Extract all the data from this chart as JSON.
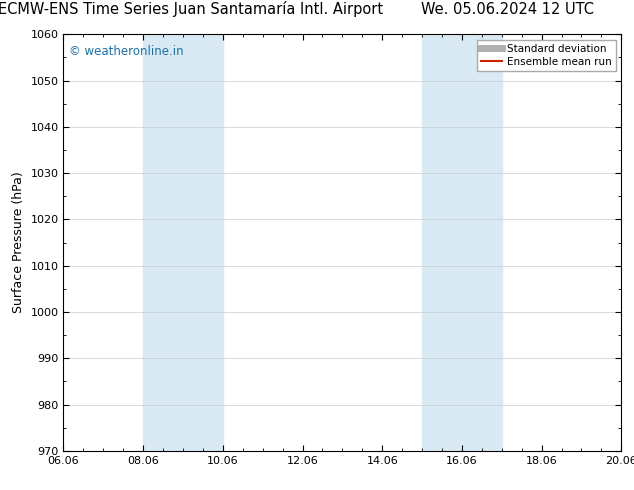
{
  "title_left": "ECMW-ENS Time Series Juan Santamaría Intl. Airport",
  "title_right": "We. 05.06.2024 12 UTC",
  "ylabel": "Surface Pressure (hPa)",
  "ylim": [
    970,
    1060
  ],
  "yticks": [
    970,
    980,
    990,
    1000,
    1010,
    1020,
    1030,
    1040,
    1050,
    1060
  ],
  "xtick_labels": [
    "06.06",
    "08.06",
    "10.06",
    "12.06",
    "14.06",
    "16.06",
    "18.06",
    "20.06"
  ],
  "xtick_positions": [
    6,
    8,
    10,
    12,
    14,
    16,
    18,
    20
  ],
  "xlim": [
    6.0,
    20.0
  ],
  "shade_bands": [
    {
      "x_start": 8.0,
      "x_end": 10.0
    },
    {
      "x_start": 15.0,
      "x_end": 17.0
    }
  ],
  "shade_color": "#daeaf5",
  "watermark_text": "© weatheronline.in",
  "watermark_color": "#1a6fab",
  "legend_items": [
    {
      "label": "Standard deviation",
      "color": "#b0b0b0",
      "linestyle": "-",
      "linewidth": 5
    },
    {
      "label": "Ensemble mean run",
      "color": "#cc2200",
      "linestyle": "-",
      "linewidth": 1.5
    }
  ],
  "background_color": "#ffffff",
  "grid_color": "#cccccc",
  "title_fontsize": 10.5,
  "ylabel_fontsize": 9,
  "tick_fontsize": 8,
  "watermark_fontsize": 8.5,
  "legend_fontsize": 7.5
}
